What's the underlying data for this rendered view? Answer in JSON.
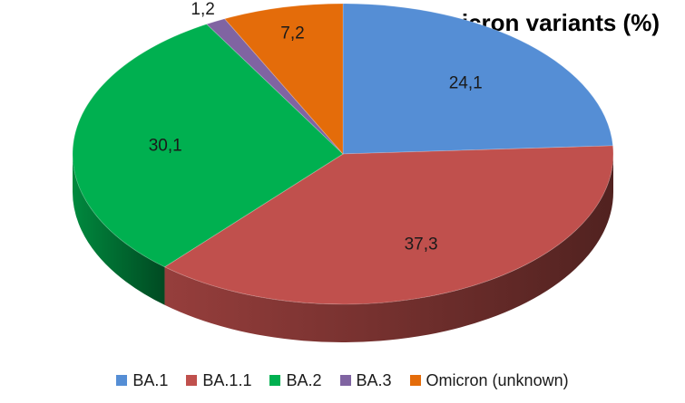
{
  "chart_data": {
    "type": "pie",
    "title": "Omicron variants (%)",
    "categories": [
      "BA.1",
      "BA.1.1",
      "BA.2",
      "BA.3",
      "Omicron (unknown)"
    ],
    "values": [
      24.1,
      37.3,
      30.1,
      1.2,
      7.2
    ],
    "value_labels": [
      "24,1",
      "37,3",
      "30,1",
      "1,2",
      "7,2"
    ],
    "colors": [
      "#558ED5",
      "#C0504D",
      "#00B050",
      "#8064A2",
      "#E46C0A"
    ],
    "style": "3d",
    "start_angle_deg": 0,
    "direction": "clockwise",
    "legend_position": "bottom"
  }
}
